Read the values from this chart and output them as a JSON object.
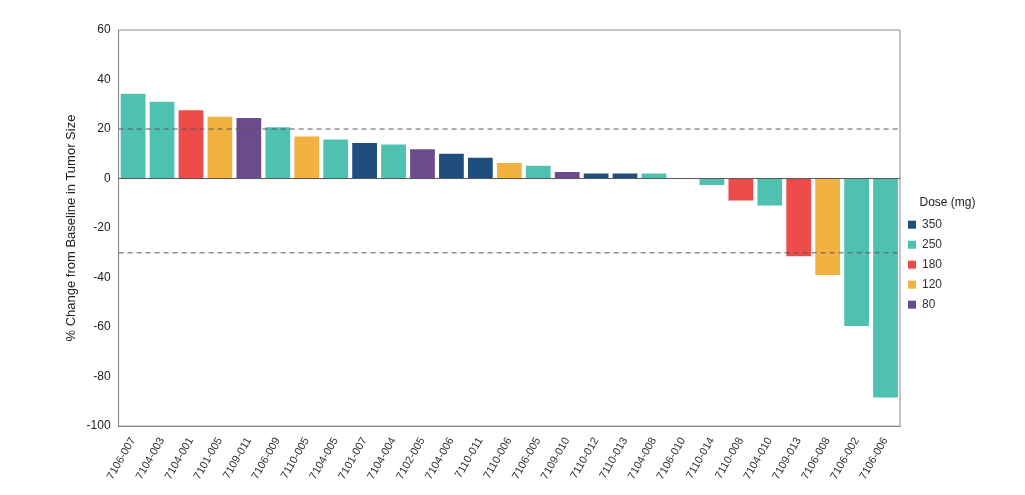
{
  "chart_data": {
    "type": "bar",
    "ylabel": "% Change from Baseline in Tumor Size",
    "legend_title": "Dose (mg)",
    "categories": [
      "7106-007",
      "7104-003",
      "7104-001",
      "7101-005",
      "7109-011",
      "7106-009",
      "7110-005",
      "7104-005",
      "7101-007",
      "7104-004",
      "7102-005",
      "7104-006",
      "7110-011",
      "7110-006",
      "7106-005",
      "7109-010",
      "7110-012",
      "7110-013",
      "7104-008",
      "7106-010",
      "7110-014",
      "7110-008",
      "7104-010",
      "7109-013",
      "7106-008",
      "7106-002",
      "7106-006"
    ],
    "series": [
      {
        "name": "350",
        "color": "#1f4e7e",
        "values": [
          null,
          null,
          null,
          null,
          null,
          null,
          null,
          null,
          14.4,
          null,
          null,
          10,
          8.4,
          null,
          null,
          null,
          2,
          2,
          null,
          null,
          null,
          null,
          null,
          null,
          null,
          null,
          null
        ]
      },
      {
        "name": "250",
        "color": "#4fc1b0",
        "values": [
          34.3,
          31,
          null,
          null,
          null,
          20.7,
          null,
          15.8,
          null,
          13.8,
          null,
          null,
          null,
          null,
          5.2,
          null,
          null,
          null,
          2,
          null,
          -2.6,
          null,
          -10.9,
          null,
          null,
          -59.6,
          -88.4
        ]
      },
      {
        "name": "180",
        "color": "#ee4b4b",
        "values": [
          null,
          null,
          27.6,
          null,
          null,
          null,
          null,
          null,
          null,
          null,
          null,
          null,
          null,
          null,
          null,
          null,
          null,
          null,
          null,
          null,
          null,
          -8.9,
          null,
          -31.4,
          null,
          null,
          null
        ]
      },
      {
        "name": "120",
        "color": "#f2b241",
        "values": [
          null,
          null,
          null,
          25,
          null,
          null,
          17,
          null,
          null,
          null,
          null,
          null,
          null,
          6.3,
          null,
          null,
          null,
          null,
          null,
          null,
          null,
          null,
          null,
          null,
          -39,
          null,
          null
        ]
      },
      {
        "name": "80",
        "color": "#6a4c8c",
        "values": [
          null,
          null,
          null,
          null,
          24.5,
          null,
          null,
          null,
          null,
          null,
          11.8,
          null,
          null,
          null,
          null,
          2.6,
          null,
          null,
          null,
          null,
          null,
          null,
          null,
          null,
          null,
          null,
          null
        ]
      }
    ],
    "ylim": [
      -100,
      60
    ],
    "yticks": [
      -100,
      -80,
      -60,
      -40,
      -20,
      0,
      20,
      40,
      60
    ],
    "ref_lines": [
      {
        "axis": "y",
        "value": 20,
        "line_style": "dashed"
      },
      {
        "axis": "y",
        "value": -30,
        "line_style": "dashed"
      }
    ],
    "grid": false,
    "legend": "right"
  }
}
